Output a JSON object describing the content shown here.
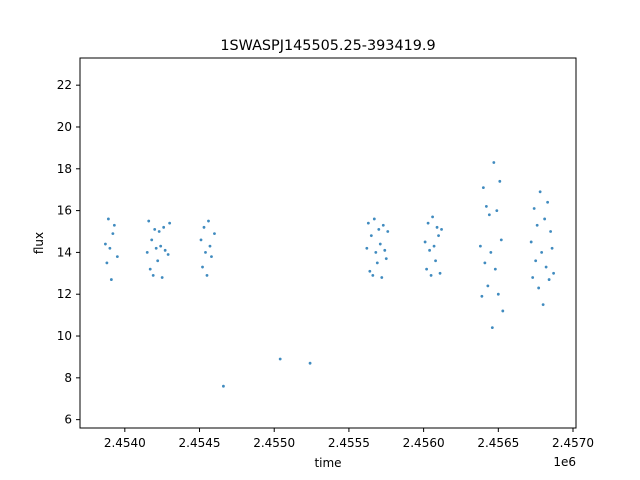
{
  "chart_data": {
    "type": "scatter",
    "title": "1SWASPJ145505.25-393419.9",
    "xlabel": "time",
    "ylabel": "flux",
    "x_offset_label": "1e6",
    "xlim": [
      2453700,
      2457020
    ],
    "ylim": [
      5.6,
      23.3
    ],
    "xticks": [
      2.454,
      2.4545,
      2.455,
      2.4555,
      2.456,
      2.4565,
      2.457
    ],
    "xtick_labels": [
      "2.4540",
      "2.4545",
      "2.4550",
      "2.4555",
      "2.4560",
      "2.4565",
      "2.4570"
    ],
    "yticks": [
      6,
      8,
      10,
      12,
      14,
      16,
      18,
      20,
      22
    ],
    "ytick_labels": [
      "6",
      "8",
      "10",
      "12",
      "14",
      "16",
      "18",
      "20",
      "22"
    ],
    "grid": false,
    "marker_color": "#1f77b4",
    "series": [
      {
        "x": [
          2453870,
          2453880,
          2453890,
          2453900,
          2453910,
          2453920,
          2453930,
          2453950,
          2454150,
          2454160,
          2454170,
          2454180,
          2454190,
          2454200,
          2454210,
          2454220,
          2454230,
          2454240,
          2454250,
          2454260,
          2454270,
          2454290,
          2454300,
          2454510,
          2454520,
          2454530,
          2454540,
          2454550,
          2454560,
          2454570,
          2454580,
          2454600,
          2454660,
          2455040,
          2455240,
          2455620,
          2455630,
          2455640,
          2455650,
          2455660,
          2455670,
          2455680,
          2455690,
          2455700,
          2455710,
          2455720,
          2455730,
          2455740,
          2455750,
          2455760,
          2456010,
          2456020,
          2456030,
          2456040,
          2456050,
          2456060,
          2456070,
          2456080,
          2456090,
          2456100,
          2456110,
          2456120,
          2456380,
          2456390,
          2456400,
          2456410,
          2456420,
          2456430,
          2456440,
          2456450,
          2456460,
          2456470,
          2456480,
          2456490,
          2456500,
          2456510,
          2456520,
          2456530,
          2456720,
          2456730,
          2456740,
          2456750,
          2456760,
          2456770,
          2456780,
          2456790,
          2456800,
          2456810,
          2456820,
          2456830,
          2456840,
          2456850,
          2456860,
          2456870
        ],
        "y": [
          14.4,
          13.5,
          15.6,
          14.2,
          12.7,
          14.9,
          15.3,
          13.8,
          14.0,
          15.5,
          13.2,
          14.6,
          12.9,
          15.1,
          14.2,
          13.6,
          15.0,
          14.3,
          12.8,
          15.2,
          14.1,
          13.9,
          15.4,
          14.6,
          13.3,
          15.2,
          14.0,
          12.9,
          15.5,
          14.3,
          13.8,
          14.9,
          7.6,
          8.9,
          8.7,
          14.2,
          15.4,
          13.1,
          14.8,
          12.9,
          15.6,
          14.0,
          13.5,
          15.1,
          14.4,
          12.8,
          15.3,
          14.1,
          13.7,
          15.0,
          14.5,
          13.2,
          15.4,
          14.1,
          12.9,
          15.7,
          14.3,
          13.6,
          15.2,
          14.8,
          13.0,
          15.1,
          14.3,
          11.9,
          17.1,
          13.5,
          16.2,
          12.4,
          15.8,
          14.0,
          10.4,
          18.3,
          13.2,
          16.0,
          12.0,
          17.4,
          14.6,
          11.2,
          14.5,
          12.8,
          16.1,
          13.6,
          15.3,
          12.3,
          16.9,
          14.0,
          11.5,
          15.6,
          13.3,
          16.4,
          12.7,
          15.0,
          14.2,
          13.0
        ]
      }
    ]
  }
}
